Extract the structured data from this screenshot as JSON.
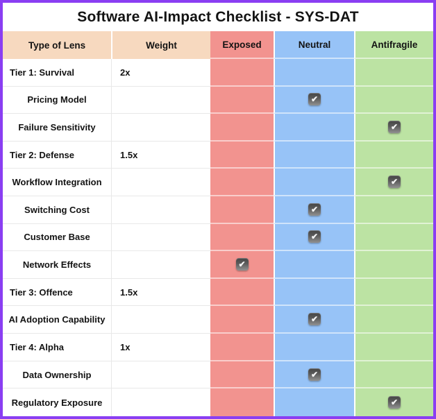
{
  "title": "Software AI-Impact Checklist - SYS-DAT",
  "icons": {
    "check_name": "checkbox-checked",
    "check_glyph": "✔"
  },
  "colors": {
    "border": "#8A3EF2",
    "header_peach": "#F7D9BF",
    "exposed": "#F2938F",
    "neutral": "#97C3F7",
    "antifragile": "#BCE3A3",
    "text": "#131313",
    "checkbox": "#5c5c5c",
    "grid_line_white_cols": "#E8E8E8"
  },
  "chart_data": {
    "type": "table",
    "title": "Software AI-Impact Checklist - SYS-DAT",
    "columns": [
      "Type of Lens",
      "Weight",
      "Exposed",
      "Neutral",
      "Antifragile"
    ],
    "rows": [
      {
        "label": "Tier 1: Survival",
        "weight": "2x",
        "kind": "tier",
        "status": null
      },
      {
        "label": "Pricing Model",
        "weight": "",
        "kind": "item",
        "status": "neutral"
      },
      {
        "label": "Failure Sensitivity",
        "weight": "",
        "kind": "item",
        "status": "antifragile"
      },
      {
        "label": "Tier 2: Defense",
        "weight": "1.5x",
        "kind": "tier",
        "status": null
      },
      {
        "label": "Workflow Integration",
        "weight": "",
        "kind": "item",
        "status": "antifragile"
      },
      {
        "label": "Switching Cost",
        "weight": "",
        "kind": "item",
        "status": "neutral"
      },
      {
        "label": "Customer Base",
        "weight": "",
        "kind": "item",
        "status": "neutral"
      },
      {
        "label": "Network Effects",
        "weight": "",
        "kind": "item",
        "status": "exposed"
      },
      {
        "label": "Tier 3: Offence",
        "weight": "1.5x",
        "kind": "tier",
        "status": null
      },
      {
        "label": "AI Adoption Capability",
        "weight": "",
        "kind": "item",
        "status": "neutral"
      },
      {
        "label": "Tier 4: Alpha",
        "weight": "1x",
        "kind": "tier",
        "status": null
      },
      {
        "label": "Data Ownership",
        "weight": "",
        "kind": "item",
        "status": "neutral"
      },
      {
        "label": "Regulatory Exposure",
        "weight": "",
        "kind": "item",
        "status": "antifragile"
      }
    ]
  }
}
